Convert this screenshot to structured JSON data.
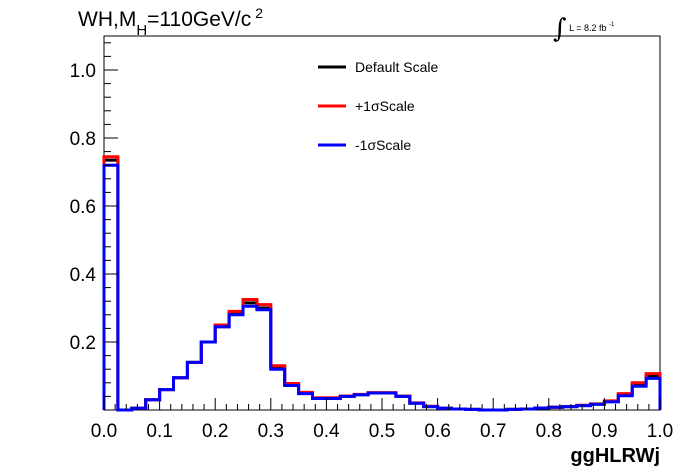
{
  "title": {
    "main": "WH,M",
    "sub": "H",
    "rest": "=110GeV/c",
    "sup": "2"
  },
  "lumi": {
    "integral": "∫",
    "text": "L = 8.2 fb",
    "sup": "-1"
  },
  "chart_data": {
    "type": "line",
    "style": "step-histogram",
    "xlabel": "ggHLRWj",
    "ylabel": "",
    "xlim": [
      0.0,
      1.0
    ],
    "ylim": [
      0.0,
      1.1
    ],
    "x_ticks": [
      "0.0",
      "0.1",
      "0.2",
      "0.3",
      "0.4",
      "0.5",
      "0.6",
      "0.7",
      "0.8",
      "0.9",
      "1.0"
    ],
    "y_ticks": [
      "0.2",
      "0.4",
      "0.6",
      "0.8",
      "1.0"
    ],
    "y_tick_values": [
      0.2,
      0.4,
      0.6,
      0.8,
      1.0
    ],
    "bin_edges": [
      0.0,
      0.025,
      0.05,
      0.075,
      0.1,
      0.125,
      0.15,
      0.175,
      0.2,
      0.225,
      0.25,
      0.275,
      0.3,
      0.325,
      0.35,
      0.375,
      0.4,
      0.425,
      0.45,
      0.475,
      0.5,
      0.525,
      0.55,
      0.575,
      0.6,
      0.625,
      0.65,
      0.675,
      0.7,
      0.725,
      0.75,
      0.775,
      0.8,
      0.825,
      0.85,
      0.875,
      0.9,
      0.925,
      0.95,
      0.975,
      1.0
    ],
    "legend_position": "top-center",
    "series": [
      {
        "name": "Default Scale",
        "color": "#000000",
        "values": [
          0.735,
          0.0,
          0.005,
          0.03,
          0.06,
          0.095,
          0.14,
          0.2,
          0.245,
          0.285,
          0.315,
          0.3,
          0.125,
          0.075,
          0.05,
          0.035,
          0.035,
          0.04,
          0.045,
          0.05,
          0.05,
          0.04,
          0.02,
          0.01,
          0.005,
          0.003,
          0.002,
          0.0,
          0.0,
          0.002,
          0.003,
          0.006,
          0.008,
          0.01,
          0.013,
          0.017,
          0.025,
          0.045,
          0.075,
          0.1
        ]
      },
      {
        "name": "+1σScale",
        "color": "#ff0000",
        "values": [
          0.745,
          0.0,
          0.005,
          0.03,
          0.06,
          0.095,
          0.14,
          0.2,
          0.25,
          0.29,
          0.325,
          0.31,
          0.13,
          0.078,
          0.052,
          0.036,
          0.036,
          0.041,
          0.046,
          0.051,
          0.051,
          0.041,
          0.021,
          0.011,
          0.005,
          0.003,
          0.002,
          0.0,
          0.0,
          0.002,
          0.003,
          0.006,
          0.008,
          0.01,
          0.014,
          0.018,
          0.027,
          0.048,
          0.08,
          0.107
        ]
      },
      {
        "name": "-1σScale",
        "color": "#0000ff",
        "values": [
          0.72,
          0.0,
          0.005,
          0.03,
          0.06,
          0.095,
          0.14,
          0.2,
          0.245,
          0.28,
          0.305,
          0.295,
          0.12,
          0.072,
          0.048,
          0.034,
          0.034,
          0.04,
          0.045,
          0.05,
          0.05,
          0.04,
          0.02,
          0.01,
          0.005,
          0.003,
          0.002,
          0.0,
          0.0,
          0.002,
          0.003,
          0.006,
          0.008,
          0.01,
          0.013,
          0.017,
          0.024,
          0.042,
          0.07,
          0.093
        ]
      }
    ]
  }
}
